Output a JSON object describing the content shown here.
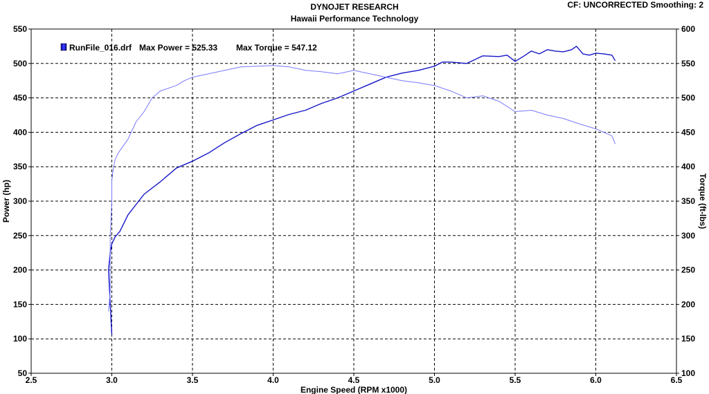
{
  "header": {
    "title": "DYNOJET RESEARCH",
    "subtitle": "Hawaii Performance Technology",
    "cf_label": "CF: UNCORRECTED  Smoothing: 2"
  },
  "chart_data": {
    "type": "line",
    "title": "DYNOJET RESEARCH",
    "subtitle": "Hawaii Performance Technology",
    "xlabel": "Engine Speed (RPM x1000)",
    "ylabel": "Power (hp)",
    "y2label": "Torque (ft-lbs)",
    "xlim": [
      2.5,
      6.5
    ],
    "ylim": [
      50,
      550
    ],
    "y2lim": [
      100,
      600
    ],
    "xticks": [
      "2.5",
      "3.0",
      "3.5",
      "4.0",
      "4.5",
      "5.0",
      "5.5",
      "6.0",
      "6.5"
    ],
    "yticks": [
      "50",
      "100",
      "150",
      "200",
      "250",
      "300",
      "350",
      "400",
      "450",
      "500",
      "550"
    ],
    "y2ticks": [
      "100",
      "150",
      "200",
      "250",
      "300",
      "350",
      "400",
      "450",
      "500",
      "550",
      "600"
    ],
    "grid": true,
    "legend": {
      "file": "RunFile_016.drf",
      "max_power_text": "Max Power = 525.33",
      "max_torque_text": "Max Torque = 547.12"
    },
    "series": [
      {
        "name": "Power",
        "axis": "left",
        "color": "#1414c8",
        "x": [
          3.0,
          2.99,
          2.98,
          2.99,
          3.0,
          3.02,
          3.05,
          3.1,
          3.15,
          3.2,
          3.3,
          3.4,
          3.5,
          3.6,
          3.7,
          3.8,
          3.9,
          4.0,
          4.1,
          4.2,
          4.3,
          4.4,
          4.5,
          4.6,
          4.7,
          4.8,
          4.9,
          5.0,
          5.05,
          5.1,
          5.2,
          5.3,
          5.4,
          5.45,
          5.5,
          5.55,
          5.6,
          5.65,
          5.7,
          5.75,
          5.8,
          5.85,
          5.88,
          5.92,
          5.96,
          6.0,
          6.05,
          6.1,
          6.12
        ],
        "values": [
          106,
          150,
          200,
          225,
          238,
          248,
          256,
          280,
          295,
          310,
          328,
          348,
          358,
          370,
          385,
          398,
          410,
          418,
          426,
          432,
          442,
          450,
          460,
          470,
          480,
          486,
          490,
          496,
          502,
          502,
          500,
          511,
          510,
          512,
          503,
          510,
          518,
          514,
          520,
          518,
          517,
          520,
          525,
          514,
          512,
          515,
          514,
          512,
          504
        ]
      },
      {
        "name": "Torque",
        "axis": "right",
        "color": "#7777ff",
        "x": [
          2.98,
          2.99,
          2.99,
          3.0,
          3.0,
          3.01,
          3.02,
          3.04,
          3.07,
          3.1,
          3.15,
          3.2,
          3.25,
          3.3,
          3.4,
          3.45,
          3.5,
          3.6,
          3.7,
          3.8,
          3.9,
          4.0,
          4.1,
          4.2,
          4.3,
          4.4,
          4.5,
          4.6,
          4.7,
          4.8,
          4.9,
          5.0,
          5.1,
          5.2,
          5.3,
          5.4,
          5.5,
          5.6,
          5.7,
          5.8,
          5.9,
          6.0,
          6.1,
          6.12
        ],
        "values": [
          190,
          220,
          300,
          350,
          380,
          398,
          410,
          420,
          430,
          440,
          465,
          480,
          500,
          510,
          518,
          525,
          530,
          535,
          540,
          545,
          546,
          547,
          545,
          540,
          538,
          535,
          540,
          535,
          530,
          525,
          522,
          518,
          510,
          500,
          503,
          495,
          480,
          482,
          475,
          470,
          462,
          455,
          445,
          433
        ]
      }
    ]
  }
}
